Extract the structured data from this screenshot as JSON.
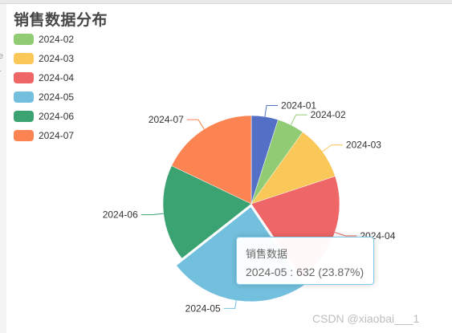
{
  "title": "销售数据分布",
  "tooltip": {
    "series_name": "销售数据",
    "label": "2024-05 : 632 (23.87%)"
  },
  "watermark": "CSDN @xiaobai___1",
  "left_strip": [
    "e",
    "r"
  ],
  "chart_data": {
    "type": "pie",
    "title": "销售数据分布",
    "series_name": "销售数据",
    "legend_position": "top-left",
    "categories": [
      "2024-01",
      "2024-02",
      "2024-03",
      "2024-04",
      "2024-05",
      "2024-06",
      "2024-07"
    ],
    "values": [
      130,
      132,
      266,
      545,
      632,
      469,
      474
    ],
    "colors": [
      "#5470c6",
      "#91cc75",
      "#fac858",
      "#ee6666",
      "#73c0de",
      "#3ba272",
      "#fc8452"
    ],
    "highlighted": "2024-05"
  }
}
